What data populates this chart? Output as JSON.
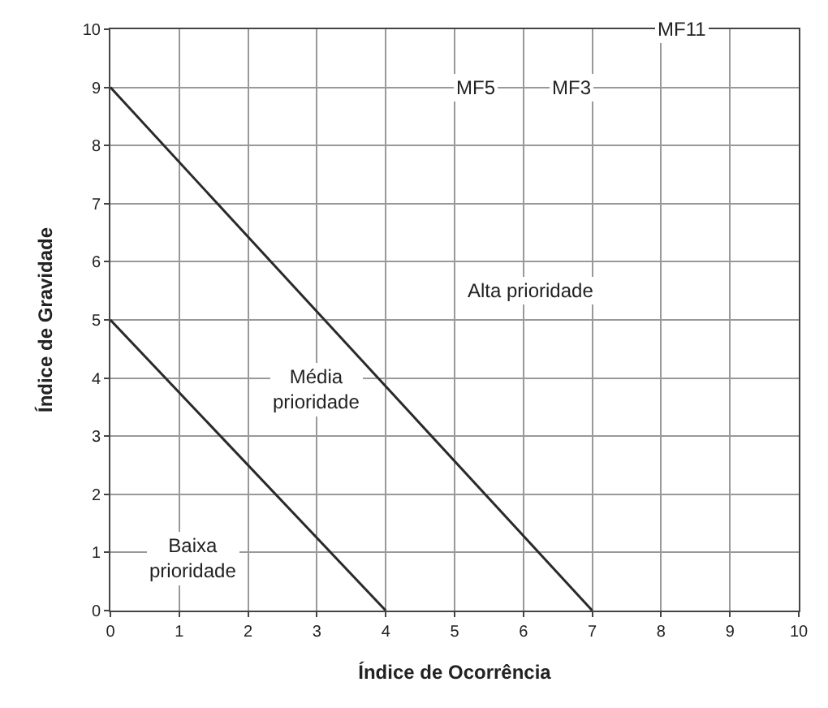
{
  "chart_data": {
    "type": "line",
    "xlabel": "Índice de Ocorrência",
    "ylabel": "Índice de Gravidade",
    "xlim": [
      0,
      10
    ],
    "ylim": [
      0,
      10
    ],
    "xticks": [
      0,
      1,
      2,
      3,
      4,
      5,
      6,
      7,
      8,
      9,
      10
    ],
    "yticks": [
      0,
      1,
      2,
      3,
      4,
      5,
      6,
      7,
      8,
      9,
      10
    ],
    "grid": true,
    "marker": "none",
    "line_style": "solid",
    "series": [
      {
        "color": "#2a2a2a",
        "x": [
          0,
          4
        ],
        "values": [
          5,
          0
        ]
      },
      {
        "color": "#2a2a2a",
        "x": [
          0,
          7
        ],
        "values": [
          9,
          0
        ]
      }
    ],
    "annotations": [
      {
        "text": "MF11",
        "x": 8.3,
        "y": 10
      },
      {
        "text": "MF5",
        "x": 5.3,
        "y": 9
      },
      {
        "text": "MF3",
        "x": 6.7,
        "y": 9
      },
      "Alta prioridade",
      "Média\nprioridade",
      "Baixa\nprioridade"
    ]
  }
}
